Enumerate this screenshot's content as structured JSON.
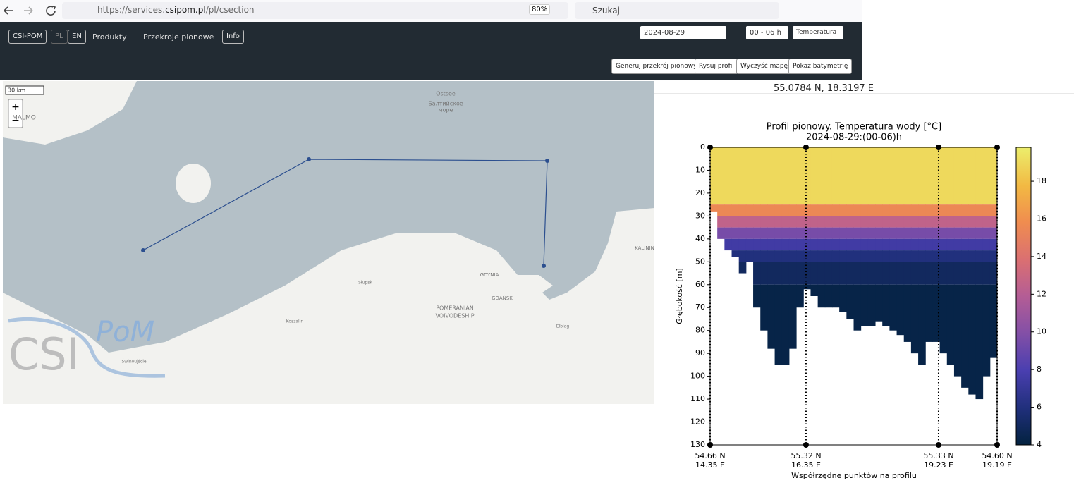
{
  "browser": {
    "url_prefix": "https://services.",
    "url_domain": "csipom.pl",
    "url_path": "/pl/csection",
    "zoom": "80%",
    "search": "Szukaj"
  },
  "navbar": {
    "brand": "CSI-POM",
    "lang": [
      "PL",
      "EN"
    ],
    "menu": [
      "Produkty",
      "Przekroje pionowe"
    ],
    "info": "Info",
    "date": "2024-08-29",
    "hours": "00 - 06 h",
    "variable": "Temperatura",
    "buttons": [
      "Generuj przekrój pionowy",
      "Rysuj profil",
      "Wyczyść mapę",
      "Pokaż batymetrię"
    ]
  },
  "map": {
    "scale": "30 km",
    "zoom_in": "+",
    "zoom_out": "−",
    "coordinates": "55.0784 N, 18.3197 E",
    "labels": [
      "MALMO",
      "Ostsee",
      "Балтийское",
      "море",
      "Słupsk",
      "Koszalin",
      "GDYNIA",
      "GDAŃSK",
      "POMERANIAN",
      "VOIVODESHIP",
      "Elbląg",
      "KALININ",
      "Świnoujście"
    ],
    "logo": [
      "CSI",
      "PoM"
    ]
  },
  "chart_data": {
    "type": "heatmap",
    "title": "Profil pionowy. Temperatura wody [°C]",
    "subtitle": "2024-08-29:(00-06)h",
    "ylabel": "Głębokość [m]",
    "xlabel": "Współrzędne punktów na profilu",
    "xlim": [
      0,
      1
    ],
    "xticks": [
      {
        "value": 0,
        "label": [
          "54.66 N",
          "14.35 E"
        ]
      },
      {
        "value": 0.334,
        "label": [
          "55.32 N",
          "16.35 E"
        ]
      },
      {
        "value": 0.796,
        "label": [
          "55.33 N",
          "19.23 E"
        ]
      },
      {
        "value": 1,
        "label": [
          "54.60 N",
          "19.19 E"
        ]
      }
    ],
    "ylim": [
      0,
      130
    ],
    "y_inverted": true,
    "yticks": [
      0,
      10,
      20,
      30,
      40,
      50,
      60,
      70,
      80,
      90,
      100,
      110,
      120,
      130
    ],
    "depth_edges": [
      0,
      25,
      30,
      35,
      40,
      45,
      50,
      60,
      130
    ],
    "layer_values": [
      19,
      15.5,
      12.5,
      9.5,
      7.5,
      6,
      5,
      4.3
    ],
    "x": [
      0.0125,
      0.0375,
      0.0625,
      0.0875,
      0.1125,
      0.1375,
      0.1625,
      0.1875,
      0.2125,
      0.2375,
      0.2625,
      0.2875,
      0.3125,
      0.3375,
      0.3625,
      0.3875,
      0.4125,
      0.4375,
      0.4625,
      0.4875,
      0.5125,
      0.5375,
      0.5625,
      0.5875,
      0.6125,
      0.6375,
      0.6625,
      0.6875,
      0.7125,
      0.7375,
      0.7625,
      0.7875,
      0.8125,
      0.8375,
      0.8625,
      0.8875,
      0.9125,
      0.9375,
      0.9625,
      0.9875
    ],
    "bottom": [
      28,
      40,
      45,
      48,
      55,
      50,
      70,
      80,
      88,
      95,
      95,
      88,
      70,
      62,
      65,
      70,
      70,
      70,
      72,
      75,
      80,
      78,
      78,
      76,
      78,
      80,
      82,
      85,
      90,
      95,
      85,
      85,
      90,
      95,
      100,
      105,
      108,
      110,
      100,
      92
    ],
    "clim": [
      4,
      19.8
    ],
    "cticks": [
      4,
      6,
      8,
      10,
      12,
      14,
      16,
      18
    ]
  }
}
